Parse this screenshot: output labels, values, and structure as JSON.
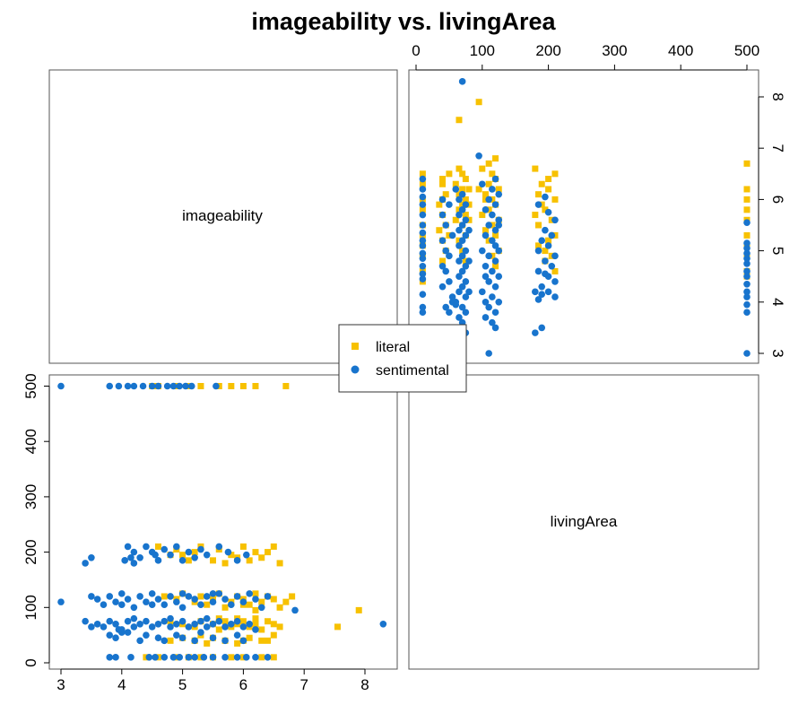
{
  "chart_data": {
    "type": "scatter",
    "title": "imageability vs. livingArea",
    "variables": [
      "imageability",
      "livingArea"
    ],
    "axes": {
      "imageability": {
        "range": [
          3,
          8.4
        ],
        "ticks": [
          3,
          4,
          5,
          6,
          7,
          8
        ]
      },
      "livingArea": {
        "range": [
          0,
          510
        ],
        "ticks": [
          0,
          100,
          200,
          300,
          400,
          500
        ]
      }
    },
    "legend": {
      "position": "center",
      "entries": [
        {
          "name": "literal",
          "color": "#F7C100",
          "marker": "square"
        },
        {
          "name": "sentimental",
          "color": "#1874CD",
          "marker": "circle"
        }
      ]
    },
    "series": [
      {
        "name": "literal",
        "color": "#F7C100",
        "marker": "square",
        "points": [
          [
            4.5,
            500
          ],
          [
            4.6,
            500
          ],
          [
            4.9,
            500
          ],
          [
            5.1,
            500
          ],
          [
            5.3,
            500
          ],
          [
            5.6,
            500
          ],
          [
            5.8,
            500
          ],
          [
            6.0,
            500
          ],
          [
            6.2,
            500
          ],
          [
            6.7,
            500
          ],
          [
            4.6,
            210
          ],
          [
            4.9,
            205
          ],
          [
            5.0,
            195
          ],
          [
            5.2,
            200
          ],
          [
            5.3,
            210
          ],
          [
            5.5,
            185
          ],
          [
            5.6,
            205
          ],
          [
            5.8,
            195
          ],
          [
            5.9,
            190
          ],
          [
            6.0,
            210
          ],
          [
            6.1,
            185
          ],
          [
            6.2,
            200
          ],
          [
            6.3,
            190
          ],
          [
            6.5,
            210
          ],
          [
            6.6,
            180
          ],
          [
            6.4,
            200
          ],
          [
            5.7,
            180
          ],
          [
            5.1,
            185
          ],
          [
            4.8,
            195
          ],
          [
            4.7,
            120
          ],
          [
            4.9,
            115
          ],
          [
            5.0,
            125
          ],
          [
            5.2,
            110
          ],
          [
            5.3,
            120
          ],
          [
            5.5,
            115
          ],
          [
            5.6,
            125
          ],
          [
            5.8,
            110
          ],
          [
            5.9,
            120
          ],
          [
            6.0,
            115
          ],
          [
            6.1,
            105
          ],
          [
            6.2,
            125
          ],
          [
            6.3,
            110
          ],
          [
            6.4,
            120
          ],
          [
            6.5,
            115
          ],
          [
            6.6,
            100
          ],
          [
            6.7,
            110
          ],
          [
            6.8,
            120
          ],
          [
            6.2,
            95
          ],
          [
            6.0,
            105
          ],
          [
            5.7,
            100
          ],
          [
            5.4,
            105
          ],
          [
            4.8,
            75
          ],
          [
            5.0,
            70
          ],
          [
            5.2,
            65
          ],
          [
            5.3,
            75
          ],
          [
            5.5,
            70
          ],
          [
            5.6,
            60
          ],
          [
            5.7,
            75
          ],
          [
            5.8,
            65
          ],
          [
            5.9,
            70
          ],
          [
            6.0,
            75
          ],
          [
            6.1,
            65
          ],
          [
            6.2,
            70
          ],
          [
            6.3,
            60
          ],
          [
            6.4,
            75
          ],
          [
            6.5,
            70
          ],
          [
            6.6,
            65
          ],
          [
            6.2,
            80
          ],
          [
            5.9,
            80
          ],
          [
            5.6,
            80
          ],
          [
            4.8,
            40
          ],
          [
            5.0,
            45
          ],
          [
            5.2,
            40
          ],
          [
            5.4,
            35
          ],
          [
            5.5,
            45
          ],
          [
            5.7,
            40
          ],
          [
            5.9,
            35
          ],
          [
            6.1,
            45
          ],
          [
            6.3,
            40
          ],
          [
            6.5,
            50
          ],
          [
            6.4,
            40
          ],
          [
            6.0,
            40
          ],
          [
            5.3,
            50
          ],
          [
            4.4,
            10
          ],
          [
            4.6,
            10
          ],
          [
            4.9,
            10
          ],
          [
            5.1,
            10
          ],
          [
            5.3,
            10
          ],
          [
            5.5,
            10
          ],
          [
            5.8,
            10
          ],
          [
            6.0,
            10
          ],
          [
            6.3,
            10
          ],
          [
            6.5,
            10
          ],
          [
            7.55,
            65
          ],
          [
            7.9,
            95
          ]
        ]
      },
      {
        "name": "sentimental",
        "color": "#1874CD",
        "marker": "circle",
        "points": [
          [
            3.0,
            500
          ],
          [
            3.8,
            500
          ],
          [
            3.95,
            500
          ],
          [
            4.1,
            500
          ],
          [
            4.2,
            500
          ],
          [
            4.35,
            500
          ],
          [
            4.5,
            500
          ],
          [
            4.6,
            500
          ],
          [
            4.75,
            500
          ],
          [
            4.85,
            500
          ],
          [
            4.95,
            500
          ],
          [
            5.05,
            500
          ],
          [
            5.15,
            500
          ],
          [
            5.55,
            500
          ],
          [
            4.1,
            210
          ],
          [
            4.2,
            200
          ],
          [
            4.3,
            190
          ],
          [
            4.2,
            180
          ],
          [
            4.4,
            210
          ],
          [
            4.5,
            200
          ],
          [
            4.6,
            185
          ],
          [
            4.7,
            205
          ],
          [
            4.8,
            195
          ],
          [
            4.9,
            210
          ],
          [
            5.0,
            185
          ],
          [
            5.1,
            200
          ],
          [
            5.2,
            190
          ],
          [
            5.3,
            205
          ],
          [
            5.4,
            195
          ],
          [
            5.6,
            210
          ],
          [
            5.75,
            200
          ],
          [
            5.9,
            185
          ],
          [
            6.05,
            195
          ],
          [
            4.15,
            190
          ],
          [
            4.55,
            195
          ],
          [
            4.05,
            185
          ],
          [
            3.4,
            180
          ],
          [
            3.5,
            190
          ],
          [
            3.0,
            110
          ],
          [
            3.5,
            120
          ],
          [
            3.6,
            115
          ],
          [
            3.7,
            105
          ],
          [
            3.8,
            120
          ],
          [
            3.9,
            110
          ],
          [
            4.0,
            125
          ],
          [
            4.1,
            115
          ],
          [
            4.2,
            100
          ],
          [
            4.3,
            120
          ],
          [
            4.4,
            110
          ],
          [
            4.5,
            125
          ],
          [
            4.6,
            115
          ],
          [
            4.7,
            105
          ],
          [
            4.8,
            120
          ],
          [
            4.9,
            110
          ],
          [
            5.0,
            100
          ],
          [
            5.1,
            120
          ],
          [
            5.2,
            115
          ],
          [
            5.3,
            105
          ],
          [
            5.4,
            120
          ],
          [
            5.5,
            110
          ],
          [
            5.6,
            125
          ],
          [
            5.7,
            115
          ],
          [
            5.8,
            105
          ],
          [
            5.9,
            120
          ],
          [
            6.0,
            110
          ],
          [
            6.1,
            125
          ],
          [
            6.2,
            115
          ],
          [
            6.3,
            100
          ],
          [
            6.4,
            120
          ],
          [
            4.0,
            105
          ],
          [
            4.5,
            105
          ],
          [
            5.0,
            125
          ],
          [
            5.5,
            125
          ],
          [
            3.4,
            75
          ],
          [
            3.6,
            70
          ],
          [
            3.7,
            65
          ],
          [
            3.8,
            75
          ],
          [
            3.9,
            70
          ],
          [
            4.0,
            60
          ],
          [
            4.1,
            75
          ],
          [
            4.2,
            65
          ],
          [
            4.3,
            70
          ],
          [
            4.4,
            75
          ],
          [
            4.5,
            65
          ],
          [
            4.6,
            70
          ],
          [
            4.7,
            75
          ],
          [
            4.8,
            65
          ],
          [
            4.9,
            70
          ],
          [
            5.0,
            75
          ],
          [
            5.1,
            65
          ],
          [
            5.2,
            70
          ],
          [
            5.3,
            75
          ],
          [
            5.4,
            65
          ],
          [
            5.5,
            70
          ],
          [
            5.6,
            75
          ],
          [
            5.7,
            65
          ],
          [
            5.8,
            70
          ],
          [
            5.9,
            75
          ],
          [
            6.0,
            65
          ],
          [
            6.1,
            70
          ],
          [
            6.2,
            60
          ],
          [
            4.2,
            80
          ],
          [
            4.8,
            80
          ],
          [
            5.4,
            80
          ],
          [
            3.5,
            65
          ],
          [
            3.8,
            50
          ],
          [
            3.9,
            45
          ],
          [
            4.1,
            55
          ],
          [
            4.3,
            40
          ],
          [
            4.4,
            50
          ],
          [
            4.6,
            45
          ],
          [
            4.7,
            40
          ],
          [
            4.9,
            50
          ],
          [
            5.0,
            45
          ],
          [
            5.2,
            40
          ],
          [
            5.3,
            55
          ],
          [
            5.5,
            45
          ],
          [
            5.7,
            40
          ],
          [
            5.9,
            50
          ],
          [
            6.0,
            40
          ],
          [
            4.0,
            55
          ],
          [
            3.95,
            60
          ],
          [
            3.8,
            10
          ],
          [
            3.9,
            10
          ],
          [
            4.15,
            10
          ],
          [
            4.45,
            10
          ],
          [
            4.55,
            10
          ],
          [
            4.7,
            10
          ],
          [
            4.85,
            10
          ],
          [
            4.95,
            10
          ],
          [
            5.1,
            10
          ],
          [
            5.2,
            10
          ],
          [
            5.35,
            10
          ],
          [
            5.5,
            10
          ],
          [
            5.7,
            10
          ],
          [
            5.9,
            10
          ],
          [
            6.05,
            10
          ],
          [
            6.2,
            10
          ],
          [
            6.4,
            10
          ],
          [
            6.85,
            95
          ],
          [
            8.3,
            70
          ]
        ]
      }
    ]
  }
}
